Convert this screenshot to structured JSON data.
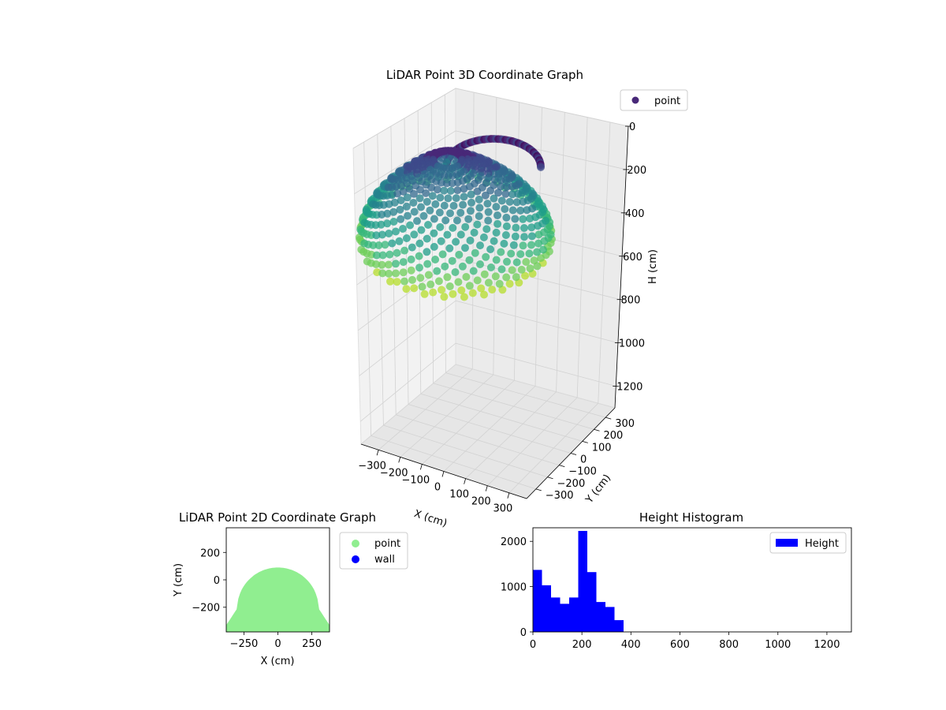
{
  "chart_data": [
    {
      "type": "scatter",
      "projection": "3d",
      "title": "LiDAR Point 3D Coordinate Graph",
      "xlabel": "X (cm)",
      "ylabel": "Y (cm)",
      "zlabel": "H (cm)",
      "xlim": [
        -380,
        380
      ],
      "ylim": [
        -380,
        380
      ],
      "zlim": [
        1300,
        0
      ],
      "z_inverted": true,
      "colormap": "viridis",
      "xticks": [
        "−300",
        "−200",
        "−100",
        "0",
        "100",
        "200",
        "300"
      ],
      "yticks": [
        "−300",
        "−200",
        "−100",
        "0",
        "100",
        "200",
        "300"
      ],
      "zticks": [
        "0",
        "200",
        "400",
        "600",
        "800",
        "1000",
        "1200"
      ],
      "grid": true,
      "legend": {
        "placement": "top-right",
        "entries": [
          {
            "label": "point",
            "color": "#482878"
          }
        ]
      },
      "series": [
        {
          "name": "point",
          "description_shape": "hemispherical spiral scan rings",
          "radius": 300,
          "height_range": [
            0,
            370
          ]
        }
      ]
    },
    {
      "type": "scatter",
      "title": "LiDAR Point 2D Coordinate Graph",
      "xlabel": "X (cm)",
      "ylabel": "Y (cm)",
      "xlim": [
        -380,
        380
      ],
      "ylim": [
        -380,
        380
      ],
      "xticks": [
        "−250",
        "0",
        "250"
      ],
      "yticks": [
        "−200",
        "0",
        "200"
      ],
      "legend": {
        "placement": "outside-right",
        "entries": [
          {
            "label": "point",
            "color": "#90ee90"
          },
          {
            "label": "wall",
            "color": "#0000ff"
          }
        ]
      },
      "series": [
        {
          "name": "point",
          "color": "#90ee90",
          "region": "half-disc of radius 380 with top edge near y=80"
        },
        {
          "name": "wall",
          "color": "#0000ff",
          "points": []
        }
      ]
    },
    {
      "type": "bar",
      "title": "Height Histogram",
      "xlim": [
        0,
        1300
      ],
      "ylim": [
        0,
        2300
      ],
      "xticks": [
        0,
        200,
        400,
        600,
        800,
        1000,
        1200
      ],
      "yticks": [
        0,
        1000,
        2000
      ],
      "bin_width": 37,
      "bin_edges": [
        0,
        37,
        74,
        111,
        148,
        185,
        222,
        259,
        296,
        333,
        370
      ],
      "values": [
        1370,
        1030,
        760,
        620,
        760,
        2230,
        1320,
        660,
        550,
        260
      ],
      "color": "#0000ff",
      "legend": {
        "placement": "top-right",
        "entries": [
          {
            "label": "Height",
            "color": "#0000ff"
          }
        ]
      }
    }
  ]
}
